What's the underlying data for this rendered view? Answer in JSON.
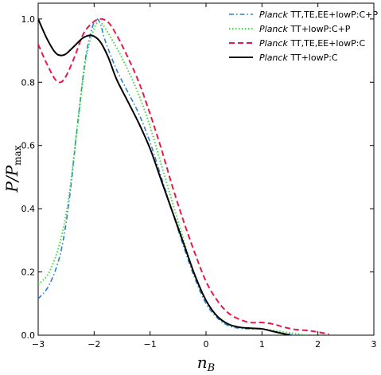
{
  "chart_data": {
    "type": "line",
    "title": "",
    "xlabel": "n_B",
    "ylabel": "P/P_max",
    "xlim": [
      -3,
      3
    ],
    "ylim": [
      0,
      1.05
    ],
    "x_ticks": [
      "−3",
      "−2",
      "−1",
      "0",
      "1",
      "2",
      "3"
    ],
    "y_ticks": [
      "0.0",
      "0.2",
      "0.4",
      "0.6",
      "0.8",
      "1.0"
    ],
    "grid": false,
    "legend_position": "top-right",
    "series": [
      {
        "name_italic": "Planck",
        "name_rest": " TT,TE,EE+lowP:C+P",
        "color": "#2c7fc9",
        "dash": "dashdot",
        "points": [
          [
            -3.0,
            0.115
          ],
          [
            -2.8,
            0.16
          ],
          [
            -2.6,
            0.26
          ],
          [
            -2.45,
            0.42
          ],
          [
            -2.3,
            0.66
          ],
          [
            -2.15,
            0.88
          ],
          [
            -2.0,
            0.99
          ],
          [
            -1.9,
            0.99
          ],
          [
            -1.8,
            0.93
          ],
          [
            -1.6,
            0.84
          ],
          [
            -1.4,
            0.77
          ],
          [
            -1.2,
            0.7
          ],
          [
            -1.0,
            0.61
          ],
          [
            -0.8,
            0.5
          ],
          [
            -0.6,
            0.39
          ],
          [
            -0.4,
            0.28
          ],
          [
            -0.2,
            0.18
          ],
          [
            0.0,
            0.1
          ],
          [
            0.2,
            0.055
          ],
          [
            0.4,
            0.03
          ],
          [
            0.6,
            0.022
          ],
          [
            0.8,
            0.02
          ],
          [
            1.0,
            0.02
          ],
          [
            1.2,
            0.012
          ],
          [
            1.4,
            0.005
          ],
          [
            1.6,
            0.0
          ]
        ]
      },
      {
        "name_italic": "Planck",
        "name_rest": " TT+lowP:C+P",
        "color": "#3ddb3d",
        "dash": "dotted",
        "points": [
          [
            -3.0,
            0.16
          ],
          [
            -2.8,
            0.2
          ],
          [
            -2.6,
            0.3
          ],
          [
            -2.45,
            0.44
          ],
          [
            -2.3,
            0.66
          ],
          [
            -2.15,
            0.87
          ],
          [
            -2.0,
            0.97
          ],
          [
            -1.9,
            0.99
          ],
          [
            -1.8,
            0.97
          ],
          [
            -1.6,
            0.91
          ],
          [
            -1.4,
            0.84
          ],
          [
            -1.2,
            0.76
          ],
          [
            -1.0,
            0.66
          ],
          [
            -0.8,
            0.54
          ],
          [
            -0.6,
            0.42
          ],
          [
            -0.4,
            0.3
          ],
          [
            -0.2,
            0.19
          ],
          [
            0.0,
            0.11
          ],
          [
            0.2,
            0.06
          ],
          [
            0.4,
            0.035
          ],
          [
            0.6,
            0.025
          ],
          [
            0.8,
            0.022
          ],
          [
            1.0,
            0.02
          ],
          [
            1.2,
            0.015
          ],
          [
            1.4,
            0.01
          ],
          [
            1.6,
            0.005
          ],
          [
            1.8,
            0.0
          ]
        ]
      },
      {
        "name_italic": "Planck",
        "name_rest": " TT,TE,EE+lowP:C",
        "color": "#e6194b",
        "dash": "dashed",
        "points": [
          [
            -3.0,
            0.92
          ],
          [
            -2.85,
            0.86
          ],
          [
            -2.7,
            0.81
          ],
          [
            -2.6,
            0.8
          ],
          [
            -2.5,
            0.82
          ],
          [
            -2.35,
            0.88
          ],
          [
            -2.2,
            0.95
          ],
          [
            -2.05,
            0.985
          ],
          [
            -1.9,
            1.0
          ],
          [
            -1.75,
            0.99
          ],
          [
            -1.6,
            0.95
          ],
          [
            -1.4,
            0.88
          ],
          [
            -1.2,
            0.8
          ],
          [
            -1.0,
            0.7
          ],
          [
            -0.8,
            0.59
          ],
          [
            -0.6,
            0.47
          ],
          [
            -0.4,
            0.36
          ],
          [
            -0.2,
            0.26
          ],
          [
            0.0,
            0.17
          ],
          [
            0.2,
            0.11
          ],
          [
            0.4,
            0.07
          ],
          [
            0.6,
            0.05
          ],
          [
            0.8,
            0.04
          ],
          [
            1.0,
            0.04
          ],
          [
            1.2,
            0.035
          ],
          [
            1.4,
            0.025
          ],
          [
            1.6,
            0.018
          ],
          [
            1.8,
            0.015
          ],
          [
            2.0,
            0.01
          ],
          [
            2.2,
            0.003
          ]
        ]
      },
      {
        "name_italic": "Planck",
        "name_rest": " TT+lowP:C",
        "color": "#000000",
        "dash": "solid",
        "points": [
          [
            -3.0,
            1.0
          ],
          [
            -2.85,
            0.94
          ],
          [
            -2.7,
            0.895
          ],
          [
            -2.6,
            0.885
          ],
          [
            -2.5,
            0.89
          ],
          [
            -2.35,
            0.915
          ],
          [
            -2.2,
            0.94
          ],
          [
            -2.05,
            0.948
          ],
          [
            -1.9,
            0.93
          ],
          [
            -1.75,
            0.88
          ],
          [
            -1.6,
            0.81
          ],
          [
            -1.4,
            0.74
          ],
          [
            -1.2,
            0.67
          ],
          [
            -1.0,
            0.59
          ],
          [
            -0.8,
            0.49
          ],
          [
            -0.6,
            0.39
          ],
          [
            -0.4,
            0.29
          ],
          [
            -0.2,
            0.19
          ],
          [
            0.0,
            0.11
          ],
          [
            0.2,
            0.06
          ],
          [
            0.4,
            0.035
          ],
          [
            0.6,
            0.025
          ],
          [
            0.8,
            0.022
          ],
          [
            1.0,
            0.02
          ],
          [
            1.2,
            0.012
          ],
          [
            1.4,
            0.004
          ],
          [
            1.5,
            0.0
          ]
        ]
      }
    ]
  }
}
